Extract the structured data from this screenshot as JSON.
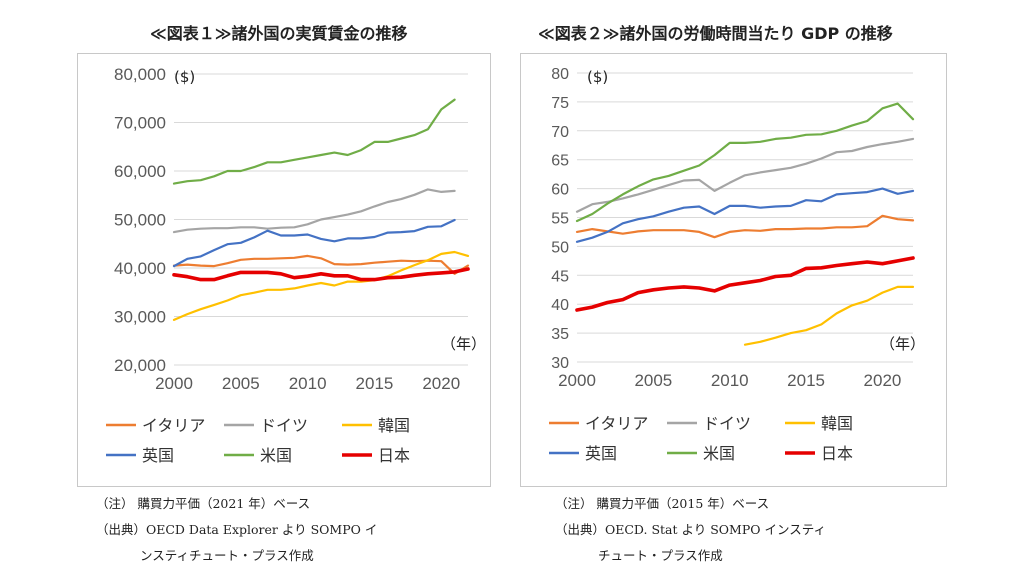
{
  "charts": [
    {
      "title": "≪図表１≫諸外国の実質賃金の推移",
      "unit": "($)",
      "year_label": "（年）",
      "notes": [
        "（注） 購買力平価（2021 年）ベース",
        "（出典）OECD Data Explorer より SOMPO イ",
        "ンスティチュート・プラス作成"
      ]
    },
    {
      "title": "≪図表２≫諸外国の労働時間当たり GDP の推移",
      "unit": "($)",
      "year_label": "（年）",
      "notes": [
        "（注） 購買力平価（2015 年）ベース",
        "（出典）OECD. Stat より SOMPO インスティ",
        "チュート・プラス作成"
      ]
    }
  ],
  "chart_data": [
    {
      "type": "line",
      "title": "≪図表１≫諸外国の実質賃金の推移",
      "ylabel": "($)",
      "xlabel": "（年）",
      "ylim": [
        20000,
        80000
      ],
      "yticks": [
        20000,
        30000,
        40000,
        50000,
        60000,
        70000,
        80000
      ],
      "ytick_labels": [
        "20,000",
        "30,000",
        "40,000",
        "50,000",
        "60,000",
        "70,000",
        "80,000"
      ],
      "xlim": [
        2000,
        2022
      ],
      "xticks": [
        2000,
        2005,
        2010,
        2015,
        2020
      ],
      "xtick_labels": [
        "2000",
        "2005",
        "2010",
        "2015",
        "2020"
      ],
      "grid": true,
      "legend_position": "bottom",
      "series": [
        {
          "name": "イタリア",
          "color": "#ed7d31",
          "x": [
            2000,
            2001,
            2002,
            2003,
            2004,
            2005,
            2006,
            2007,
            2008,
            2009,
            2010,
            2011,
            2012,
            2013,
            2014,
            2015,
            2016,
            2017,
            2018,
            2019,
            2020,
            2021,
            2022
          ],
          "y": [
            40500,
            40700,
            40500,
            40400,
            41000,
            41700,
            41900,
            41900,
            42000,
            42100,
            42500,
            42000,
            40800,
            40700,
            40800,
            41100,
            41300,
            41500,
            41400,
            41500,
            41400,
            38800,
            40500
          ]
        },
        {
          "name": "ドイツ",
          "color": "#a5a5a5",
          "x": [
            2000,
            2001,
            2002,
            2003,
            2004,
            2005,
            2006,
            2007,
            2008,
            2009,
            2010,
            2011,
            2012,
            2013,
            2014,
            2015,
            2016,
            2017,
            2018,
            2019,
            2020,
            2021,
            2022
          ],
          "y": [
            47400,
            47900,
            48100,
            48200,
            48200,
            48400,
            48400,
            48100,
            48300,
            48400,
            49000,
            50000,
            50500,
            51000,
            51700,
            52700,
            53600,
            54200,
            55100,
            56200,
            55700,
            55900,
            null
          ]
        },
        {
          "name": "韓国",
          "color": "#ffc000",
          "x": [
            2000,
            2001,
            2002,
            2003,
            2004,
            2005,
            2006,
            2007,
            2008,
            2009,
            2010,
            2011,
            2012,
            2013,
            2014,
            2015,
            2016,
            2017,
            2018,
            2019,
            2020,
            2021,
            2022
          ],
          "y": [
            29300,
            30500,
            31500,
            32400,
            33300,
            34400,
            34900,
            35500,
            35500,
            35800,
            36400,
            36900,
            36400,
            37200,
            37200,
            37500,
            38300,
            39500,
            40600,
            41600,
            42900,
            43300,
            42500
          ]
        },
        {
          "name": "英国",
          "color": "#4472c4",
          "x": [
            2000,
            2001,
            2002,
            2003,
            2004,
            2005,
            2006,
            2007,
            2008,
            2009,
            2010,
            2011,
            2012,
            2013,
            2014,
            2015,
            2016,
            2017,
            2018,
            2019,
            2020,
            2021,
            2022
          ],
          "y": [
            40400,
            41900,
            42400,
            43700,
            44900,
            45200,
            46300,
            47700,
            46700,
            46700,
            46900,
            46000,
            45500,
            46100,
            46100,
            46400,
            47300,
            47400,
            47600,
            48500,
            48600,
            49900,
            null
          ]
        },
        {
          "name": "米国",
          "color": "#70ad47",
          "x": [
            2000,
            2001,
            2002,
            2003,
            2004,
            2005,
            2006,
            2007,
            2008,
            2009,
            2010,
            2011,
            2012,
            2013,
            2014,
            2015,
            2016,
            2017,
            2018,
            2019,
            2020,
            2021,
            2022
          ],
          "y": [
            57400,
            57900,
            58100,
            58900,
            60000,
            60000,
            60800,
            61800,
            61800,
            62300,
            62800,
            63300,
            63800,
            63300,
            64300,
            66000,
            66000,
            66700,
            67400,
            68600,
            72700,
            74700,
            null
          ]
        },
        {
          "name": "日本",
          "color": "#e50000",
          "x": [
            2000,
            2001,
            2002,
            2003,
            2004,
            2005,
            2006,
            2007,
            2008,
            2009,
            2010,
            2011,
            2012,
            2013,
            2014,
            2015,
            2016,
            2017,
            2018,
            2019,
            2020,
            2021,
            2022
          ],
          "y": [
            38600,
            38200,
            37600,
            37600,
            38400,
            39100,
            39100,
            39100,
            38800,
            38000,
            38300,
            38800,
            38400,
            38400,
            37600,
            37600,
            38000,
            38100,
            38500,
            38800,
            39000,
            39200,
            39800
          ]
        }
      ]
    },
    {
      "type": "line",
      "title": "≪図表２≫諸外国の労働時間当たり GDP の推移",
      "ylabel": "($)",
      "xlabel": "（年）",
      "ylim": [
        30,
        80
      ],
      "yticks": [
        30,
        35,
        40,
        45,
        50,
        55,
        60,
        65,
        70,
        75,
        80
      ],
      "ytick_labels": [
        "30",
        "35",
        "40",
        "45",
        "50",
        "55",
        "60",
        "65",
        "70",
        "75",
        "80"
      ],
      "xlim": [
        2000,
        2022
      ],
      "xticks": [
        2000,
        2005,
        2010,
        2015,
        2020
      ],
      "xtick_labels": [
        "2000",
        "2005",
        "2010",
        "2015",
        "2020"
      ],
      "grid": true,
      "legend_position": "bottom",
      "series": [
        {
          "name": "イタリア",
          "color": "#ed7d31",
          "x": [
            2000,
            2001,
            2002,
            2003,
            2004,
            2005,
            2006,
            2007,
            2008,
            2009,
            2010,
            2011,
            2012,
            2013,
            2014,
            2015,
            2016,
            2017,
            2018,
            2019,
            2020,
            2021,
            2022
          ],
          "y": [
            52.5,
            53.0,
            52.6,
            52.2,
            52.6,
            52.8,
            52.8,
            52.8,
            52.5,
            51.6,
            52.5,
            52.8,
            52.7,
            53.0,
            53.0,
            53.1,
            53.1,
            53.3,
            53.3,
            53.5,
            55.3,
            54.7,
            54.5
          ]
        },
        {
          "name": "ドイツ",
          "color": "#a5a5a5",
          "x": [
            2000,
            2001,
            2002,
            2003,
            2004,
            2005,
            2006,
            2007,
            2008,
            2009,
            2010,
            2011,
            2012,
            2013,
            2014,
            2015,
            2016,
            2017,
            2018,
            2019,
            2020,
            2021,
            2022
          ],
          "y": [
            56.0,
            57.3,
            57.7,
            58.3,
            59.0,
            59.8,
            60.6,
            61.4,
            61.5,
            59.6,
            61.0,
            62.3,
            62.8,
            63.2,
            63.6,
            64.3,
            65.2,
            66.3,
            66.5,
            67.2,
            67.7,
            68.1,
            68.6
          ]
        },
        {
          "name": "韓国",
          "color": "#ffc000",
          "x": [
            2000,
            2001,
            2002,
            2003,
            2004,
            2005,
            2006,
            2007,
            2008,
            2009,
            2010,
            2011,
            2012,
            2013,
            2014,
            2015,
            2016,
            2017,
            2018,
            2019,
            2020,
            2021,
            2022
          ],
          "y": [
            null,
            null,
            null,
            null,
            null,
            null,
            null,
            null,
            null,
            null,
            null,
            33.0,
            33.5,
            34.2,
            35.0,
            35.5,
            36.5,
            38.4,
            39.8,
            40.6,
            42.0,
            43.0,
            43.0
          ]
        },
        {
          "name": "英国",
          "color": "#4472c4",
          "x": [
            2000,
            2001,
            2002,
            2003,
            2004,
            2005,
            2006,
            2007,
            2008,
            2009,
            2010,
            2011,
            2012,
            2013,
            2014,
            2015,
            2016,
            2017,
            2018,
            2019,
            2020,
            2021,
            2022
          ],
          "y": [
            50.8,
            51.5,
            52.5,
            54.0,
            54.7,
            55.2,
            56.0,
            56.7,
            56.9,
            55.6,
            57.0,
            57.0,
            56.7,
            56.9,
            57.0,
            58.0,
            57.8,
            59.0,
            59.2,
            59.4,
            60.0,
            59.1,
            59.6
          ]
        },
        {
          "name": "米国",
          "color": "#70ad47",
          "x": [
            2000,
            2001,
            2002,
            2003,
            2004,
            2005,
            2006,
            2007,
            2008,
            2009,
            2010,
            2011,
            2012,
            2013,
            2014,
            2015,
            2016,
            2017,
            2018,
            2019,
            2020,
            2021,
            2022
          ],
          "y": [
            54.4,
            55.6,
            57.4,
            59.0,
            60.4,
            61.6,
            62.2,
            63.1,
            64.0,
            65.8,
            67.9,
            67.9,
            68.1,
            68.6,
            68.8,
            69.3,
            69.4,
            70.0,
            70.9,
            71.7,
            73.9,
            74.7,
            72.0
          ]
        },
        {
          "name": "日本",
          "color": "#e50000",
          "x": [
            2000,
            2001,
            2002,
            2003,
            2004,
            2005,
            2006,
            2007,
            2008,
            2009,
            2010,
            2011,
            2012,
            2013,
            2014,
            2015,
            2016,
            2017,
            2018,
            2019,
            2020,
            2021,
            2022
          ],
          "y": [
            39.0,
            39.5,
            40.3,
            40.8,
            42.0,
            42.5,
            42.8,
            43.0,
            42.8,
            42.3,
            43.3,
            43.7,
            44.1,
            44.8,
            45.0,
            46.2,
            46.3,
            46.7,
            47.0,
            47.3,
            47.0,
            47.5,
            48.0
          ]
        }
      ]
    }
  ]
}
